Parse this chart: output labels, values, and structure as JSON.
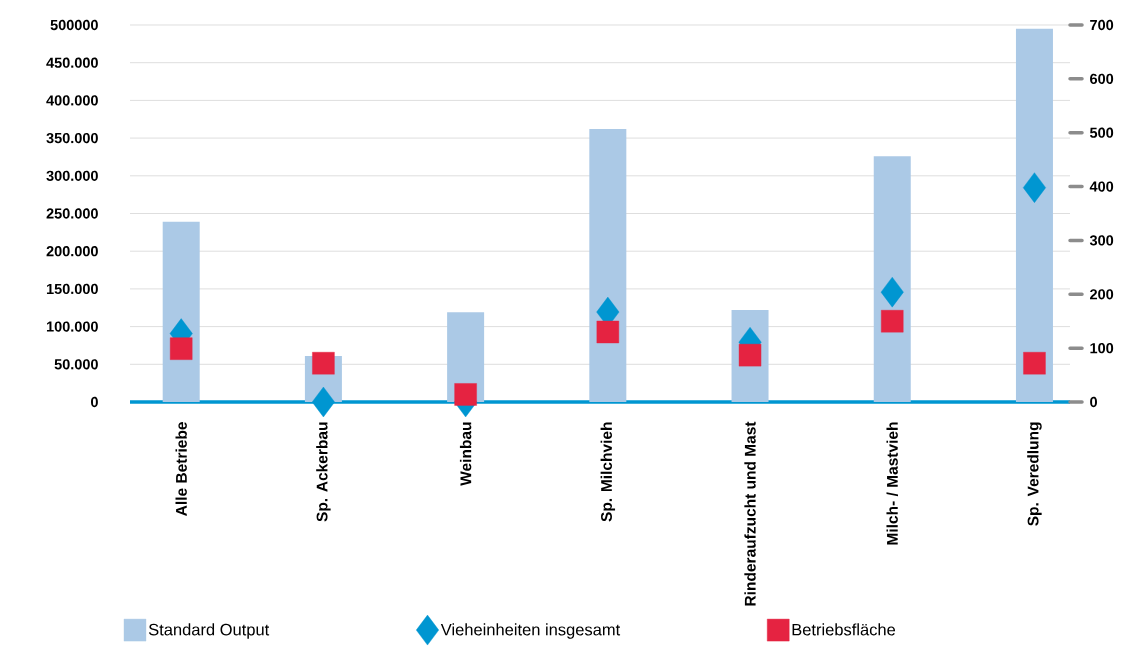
{
  "chart_data": {
    "type": "bar",
    "categories": [
      "Alle Betriebe",
      "Sp. Ackerbau",
      "Weinbau",
      "Sp. Milchvieh",
      "Rinderaufzucht und Mast",
      "Milch- / Mastvieh",
      "Sp. Veredlung"
    ],
    "series": [
      {
        "name": "Standard Output",
        "color": "#abc9e6",
        "values": [
          239000,
          61000,
          119000,
          362000,
          122000,
          326000,
          495000
        ]
      },
      {
        "name": "Vieheinheiten insgesamt",
        "type": "scatter",
        "axis": "y2",
        "marker": "diamond",
        "color": "#0096d1",
        "values": [
          127,
          0,
          0,
          167,
          111,
          204,
          398
        ]
      },
      {
        "name": "Betriebsfläche",
        "type": "scatter",
        "axis": "y2",
        "marker": "square",
        "color": "#e52341",
        "values": [
          99,
          72,
          14,
          130,
          87,
          150,
          72
        ]
      }
    ],
    "ylim": [
      0,
      500000
    ],
    "yticks": [
      0,
      {
        "value": 50000,
        "label": "50.000"
      },
      {
        "value": 100000,
        "label": "100.000"
      },
      {
        "value": 150000,
        "label": "150.000"
      },
      {
        "value": 200000,
        "label": "200.000"
      },
      {
        "value": 250000,
        "label": "250.000"
      },
      {
        "value": 300000,
        "label": "300.000"
      },
      {
        "value": 350000,
        "label": "350.000"
      },
      {
        "value": 400000,
        "label": "400.000"
      },
      {
        "value": 450000,
        "label": "450.000"
      },
      500000
    ],
    "y2lim": [
      0,
      700
    ],
    "y2ticks": [
      0,
      100,
      200,
      300,
      400,
      500,
      600,
      700
    ],
    "grid": "y",
    "legend": "bottom"
  }
}
